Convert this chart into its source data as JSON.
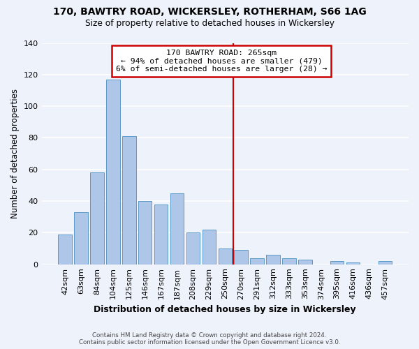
{
  "title": "170, BAWTRY ROAD, WICKERSLEY, ROTHERHAM, S66 1AG",
  "subtitle": "Size of property relative to detached houses in Wickersley",
  "xlabel": "Distribution of detached houses by size in Wickersley",
  "ylabel": "Number of detached properties",
  "footer_line1": "Contains HM Land Registry data © Crown copyright and database right 2024.",
  "footer_line2": "Contains public sector information licensed under the Open Government Licence v3.0.",
  "bar_labels": [
    "42sqm",
    "63sqm",
    "84sqm",
    "104sqm",
    "125sqm",
    "146sqm",
    "167sqm",
    "187sqm",
    "208sqm",
    "229sqm",
    "250sqm",
    "270sqm",
    "291sqm",
    "312sqm",
    "333sqm",
    "353sqm",
    "374sqm",
    "395sqm",
    "416sqm",
    "436sqm",
    "457sqm"
  ],
  "bar_values": [
    19,
    33,
    58,
    117,
    81,
    40,
    38,
    45,
    20,
    22,
    10,
    9,
    4,
    6,
    4,
    3,
    0,
    2,
    1,
    0,
    2
  ],
  "bar_color": "#aec6e8",
  "bar_edge_color": "#5a9ac8",
  "annotation_title": "170 BAWTRY ROAD: 265sqm",
  "annotation_line1": "← 94% of detached houses are smaller (479)",
  "annotation_line2": "6% of semi-detached houses are larger (28) →",
  "annotation_box_color": "#cc0000",
  "ref_line_x": 10.5,
  "ylim": [
    0,
    140
  ],
  "yticks": [
    0,
    20,
    40,
    60,
    80,
    100,
    120,
    140
  ],
  "background_color": "#eef2fb",
  "grid_color": "#ffffff"
}
